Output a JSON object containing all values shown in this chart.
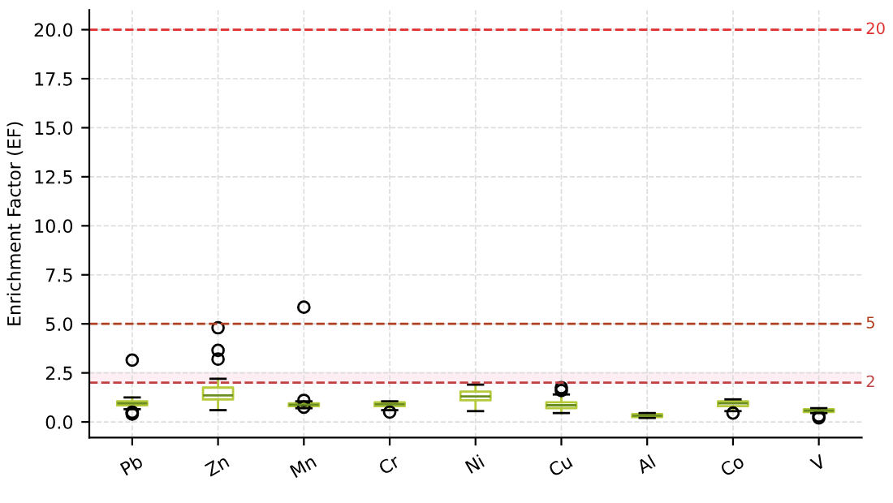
{
  "chart_data": {
    "type": "box",
    "ylabel": "Enrichment Factor (EF)",
    "categories": [
      "Pb",
      "Zn",
      "Mn",
      "Cr",
      "Ni",
      "Cu",
      "Al",
      "Co",
      "V"
    ],
    "boxes": [
      {
        "low": 0.65,
        "q1": 0.85,
        "median": 0.95,
        "q3": 1.05,
        "high": 1.25,
        "outliers": [
          3.15,
          0.5,
          0.45,
          0.4
        ]
      },
      {
        "low": 0.6,
        "q1": 1.15,
        "median": 1.35,
        "q3": 1.75,
        "high": 2.2,
        "outliers": [
          3.2,
          3.65,
          4.8
        ]
      },
      {
        "low": 0.7,
        "q1": 0.8,
        "median": 0.88,
        "q3": 0.95,
        "high": 1.05,
        "outliers": [
          5.85,
          1.1,
          0.75
        ]
      },
      {
        "low": 0.6,
        "q1": 0.8,
        "median": 0.9,
        "q3": 1.0,
        "high": 1.05,
        "outliers": [
          0.5
        ]
      },
      {
        "low": 0.55,
        "q1": 1.1,
        "median": 1.3,
        "q3": 1.55,
        "high": 1.9
      },
      {
        "low": 0.45,
        "q1": 0.7,
        "median": 0.85,
        "q3": 1.0,
        "high": 1.4,
        "outliers": [
          1.6,
          1.75
        ]
      },
      {
        "low": 0.2,
        "q1": 0.25,
        "median": 0.32,
        "q3": 0.4,
        "high": 0.45
      },
      {
        "low": 0.55,
        "q1": 0.8,
        "median": 0.95,
        "q3": 1.05,
        "high": 1.15,
        "outliers": [
          0.45
        ]
      },
      {
        "low": 0.45,
        "q1": 0.5,
        "median": 0.58,
        "q3": 0.65,
        "high": 0.7,
        "outliers": [
          0.3,
          0.2
        ]
      }
    ],
    "color": "#b5c93a",
    "ylim": [
      -0.8,
      21
    ],
    "yticks": [
      {
        "value": 0,
        "label": "0.0"
      },
      {
        "value": 2.5,
        "label": "2.5"
      },
      {
        "value": 5,
        "label": "5.0"
      },
      {
        "value": 7.5,
        "label": "7.5"
      },
      {
        "value": 10,
        "label": "10.0"
      },
      {
        "value": 12.5,
        "label": "12.5"
      },
      {
        "value": 15,
        "label": "15.0"
      },
      {
        "value": 17.5,
        "label": "17.5"
      },
      {
        "value": 20,
        "label": "20.0"
      }
    ],
    "ref_lines": [
      {
        "axis": "y",
        "value": 20,
        "label": "20",
        "color": "#e03030",
        "line_style": "dashed"
      },
      {
        "axis": "y",
        "value": 5,
        "label": "5",
        "color": "#b04020",
        "line_style": "dashed"
      },
      {
        "axis": "y",
        "value": 2,
        "label": "2",
        "color": "#c04040",
        "line_style": "dashed"
      }
    ],
    "bands": [
      {
        "axis": "y",
        "from": 2,
        "to": 2.5,
        "color": "#fce4ec"
      }
    ],
    "grid": true
  }
}
